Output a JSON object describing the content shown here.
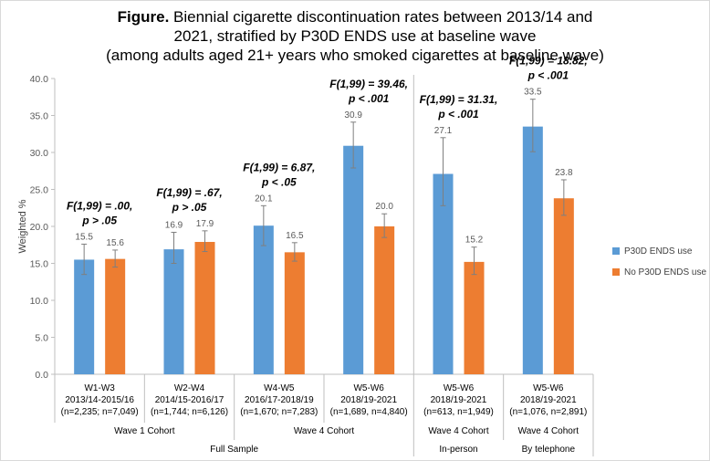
{
  "title": {
    "prefix": "Figure.",
    "line1": "Biennial cigarette discontinuation rates between 2013/14 and",
    "line2": "2021, stratified by P30D ENDS use at baseline wave",
    "line3": "(among adults aged 21+ years who smoked cigarettes at baseline wave)"
  },
  "chart_data": {
    "type": "bar",
    "ylabel": "Weighted %",
    "ylim": [
      0,
      40
    ],
    "yticks": [
      "0.0",
      "5.0",
      "10.0",
      "15.0",
      "20.0",
      "25.0",
      "30.0",
      "35.0",
      "40.0"
    ],
    "grid": false,
    "legend_position": "right",
    "categories": [
      {
        "line1": "W1-W3",
        "line2": "2013/14-2015/16",
        "line3": "(n=2,235; n=7,049)"
      },
      {
        "line1": "W2-W4",
        "line2": "2014/15-2016/17",
        "line3": "(n=1,744; n=6,126)"
      },
      {
        "line1": "W4-W5",
        "line2": "2016/17-2018/19",
        "line3": "(n=1,670; n=7,283)"
      },
      {
        "line1": "W5-W6",
        "line2": "2018/19-2021",
        "line3": "(n=1,689, n=4,840)"
      },
      {
        "line1": "W5-W6",
        "line2": "2018/19-2021",
        "line3": "(n=613, n=1,949)"
      },
      {
        "line1": "W5-W6",
        "line2": "2018/19-2021",
        "line3": "(n=1,076, n=2,891)"
      }
    ],
    "series": [
      {
        "name": "P30D ENDS use",
        "color": "#5b9bd5",
        "values": [
          15.5,
          16.9,
          20.1,
          30.9,
          27.1,
          33.5
        ],
        "value_labels": [
          "15.5",
          "16.9",
          "20.1",
          "30.9",
          "27.1",
          "33.5"
        ],
        "ci_low": [
          13.5,
          15.0,
          17.4,
          27.9,
          22.8,
          30.1
        ],
        "ci_high": [
          17.6,
          19.2,
          22.8,
          34.1,
          32.0,
          37.2
        ]
      },
      {
        "name": "No P30D ENDS use",
        "color": "#ed7d31",
        "values": [
          15.6,
          17.9,
          16.5,
          20.0,
          15.2,
          23.8
        ],
        "value_labels": [
          "15.6",
          "17.9",
          "16.5",
          "20.0",
          "15.2",
          "23.8"
        ],
        "ci_low": [
          14.5,
          16.6,
          15.3,
          18.5,
          13.5,
          21.5
        ],
        "ci_high": [
          16.8,
          19.4,
          17.8,
          21.7,
          17.2,
          26.3
        ]
      }
    ],
    "annotations": [
      {
        "line1": "F(1,99) = .00,",
        "line2": "p > .05"
      },
      {
        "line1": "F(1,99) = .67,",
        "line2": "p > .05"
      },
      {
        "line1": "F(1,99) = 6.87,",
        "line2": "p < .05"
      },
      {
        "line1": "F(1,99) = 39.46,",
        "line2": "p < .001"
      },
      {
        "line1": "F(1,99) = 31.31,",
        "line2": "p < .001"
      },
      {
        "line1": "F(1,99) = 18.82,",
        "line2": "p < .001"
      }
    ],
    "cohort_labels": [
      "Wave 1 Cohort",
      "Wave 4 Cohort",
      "Wave 4 Cohort",
      "Wave 4 Cohort"
    ],
    "sample_labels": [
      "Full Sample",
      "In-person",
      "By telephone"
    ]
  }
}
